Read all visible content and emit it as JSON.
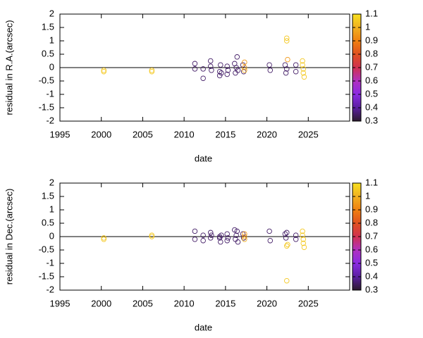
{
  "chart_data": [
    {
      "type": "scatter",
      "xlabel": "date",
      "ylabel": "residual in R.A.(arcsec)",
      "xlim": [
        1995,
        2030
      ],
      "xticks": [
        1995,
        2000,
        2005,
        2010,
        2015,
        2020,
        2025
      ],
      "ylim": [
        -2,
        2
      ],
      "yticks": [
        -2,
        -1.5,
        -1,
        -0.5,
        0,
        0.5,
        1,
        1.5,
        2
      ],
      "clim": [
        0.3,
        1.1
      ],
      "cticks": [
        0.3,
        0.4,
        0.5,
        0.6,
        0.7,
        0.8,
        0.9,
        1,
        1.1
      ],
      "palette": [
        "#2b1a2e",
        "#5a1fa0",
        "#8a2be2",
        "#b030c0",
        "#d03050",
        "#e05020",
        "#f08010",
        "#f0b020",
        "#f8e020"
      ],
      "x": [
        2000.3,
        2000.3,
        2006.1,
        2006.1,
        2011.3,
        2011.3,
        2012.3,
        2012.3,
        2013.2,
        2013.2,
        2013.3,
        2014.3,
        2014.3,
        2014.4,
        2014.5,
        2015.2,
        2015.2,
        2015.3,
        2016.1,
        2016.2,
        2016.3,
        2016.4,
        2016.5,
        2017.1,
        2017.2,
        2017.3,
        2017.3,
        2017.3,
        2020.3,
        2020.4,
        2022.2,
        2022.3,
        2022.4,
        2022.4,
        2022.4,
        2022.5,
        2023.5,
        2023.5,
        2024.3,
        2024.3,
        2024.4,
        2024.4,
        2024.5
      ],
      "values": [
        -0.1,
        -0.15,
        -0.1,
        -0.15,
        0.15,
        -0.05,
        -0.4,
        -0.05,
        0.25,
        0.05,
        -0.1,
        -0.3,
        -0.15,
        0.1,
        -0.2,
        -0.25,
        0.05,
        -0.1,
        0.15,
        -0.2,
        0,
        0.4,
        -0.1,
        0.1,
        -0.15,
        0.2,
        0,
        -0.1,
        0.1,
        -0.1,
        0.1,
        -0.2,
        -0.05,
        1.1,
        1,
        0.3,
        0.1,
        -0.15,
        0.25,
        0.1,
        -0.05,
        -0.2,
        -0.35
      ],
      "color_values": [
        1.05,
        1.05,
        1.05,
        1.05,
        0.35,
        0.35,
        0.35,
        0.35,
        0.35,
        0.35,
        0.35,
        0.35,
        0.35,
        0.35,
        0.35,
        0.35,
        0.35,
        0.35,
        0.35,
        0.35,
        0.35,
        0.35,
        0.35,
        0.35,
        0.35,
        0.95,
        0.95,
        1,
        0.35,
        0.35,
        0.35,
        0.35,
        0.35,
        1.05,
        1.05,
        0.95,
        0.35,
        0.35,
        1.05,
        1.05,
        1.05,
        1.05,
        1.05
      ]
    },
    {
      "type": "scatter",
      "xlabel": "date",
      "ylabel": "residual in Dec.(arcsec)",
      "xlim": [
        1995,
        2030
      ],
      "xticks": [
        1995,
        2000,
        2005,
        2010,
        2015,
        2020,
        2025
      ],
      "ylim": [
        -2,
        2
      ],
      "yticks": [
        -2,
        -1.5,
        -1,
        -0.5,
        0,
        0.5,
        1,
        1.5,
        2
      ],
      "clim": [
        0.3,
        1.1
      ],
      "cticks": [
        0.3,
        0.4,
        0.5,
        0.6,
        0.7,
        0.8,
        0.9,
        1,
        1.1
      ],
      "palette": [
        "#2b1a2e",
        "#5a1fa0",
        "#8a2be2",
        "#b030c0",
        "#d03050",
        "#e05020",
        "#f08010",
        "#f0b020",
        "#f8e020"
      ],
      "x": [
        2000.3,
        2000.3,
        2006.1,
        2006.1,
        2011.3,
        2011.3,
        2012.3,
        2012.3,
        2013.2,
        2013.2,
        2013.3,
        2014.3,
        2014.3,
        2014.4,
        2014.5,
        2015.2,
        2015.2,
        2015.3,
        2016.1,
        2016.2,
        2016.3,
        2016.4,
        2016.5,
        2017.1,
        2017.2,
        2017.3,
        2017.3,
        2017.3,
        2020.3,
        2020.4,
        2022.2,
        2022.3,
        2022.4,
        2022.4,
        2022.4,
        2022.5,
        2023.5,
        2023.5,
        2024.3,
        2024.3,
        2024.4,
        2024.4,
        2024.5
      ],
      "values": [
        -0.05,
        -0.1,
        0.05,
        0,
        0.2,
        -0.1,
        0.05,
        -0.15,
        0.15,
        -0.05,
        0.05,
        0,
        -0.05,
        -0.2,
        0.05,
        0.1,
        -0.15,
        -0.05,
        0.25,
        -0.1,
        0.05,
        0.2,
        -0.2,
        0.1,
        -0.05,
        0.1,
        0,
        -0.1,
        0.2,
        -0.15,
        0.1,
        -0.05,
        0.15,
        -1.65,
        -0.35,
        -0.3,
        0.05,
        -0.1,
        0.2,
        0.05,
        -0.1,
        -0.25,
        -0.4
      ],
      "color_values": [
        1.05,
        1.05,
        1.05,
        1.05,
        0.35,
        0.35,
        0.35,
        0.35,
        0.35,
        0.35,
        0.35,
        0.35,
        0.35,
        0.35,
        0.35,
        0.35,
        0.35,
        0.35,
        0.35,
        0.35,
        0.35,
        0.35,
        0.35,
        0.35,
        0.35,
        0.95,
        0.95,
        1,
        0.35,
        0.35,
        0.35,
        0.35,
        0.35,
        1.05,
        1.05,
        1.05,
        0.35,
        0.35,
        1.05,
        1.05,
        1.05,
        1.05,
        1.05
      ]
    }
  ]
}
